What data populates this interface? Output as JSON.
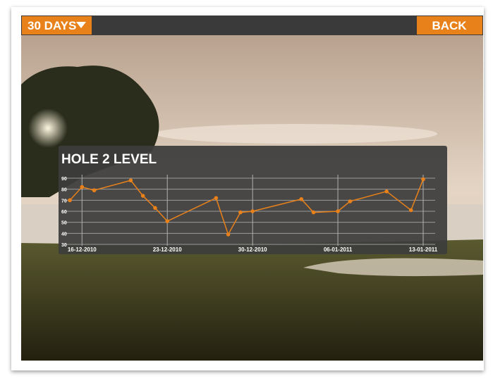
{
  "ui": {
    "menu_button": "30 DAYS",
    "back_button": "BACK"
  },
  "chart_data": {
    "type": "line",
    "title": "HOLE 2 LEVEL",
    "x": [
      "2010-12-15",
      "2010-12-16",
      "2010-12-17",
      "2010-12-20",
      "2010-12-21",
      "2010-12-22",
      "2010-12-23",
      "2010-12-27",
      "2010-12-28",
      "2010-12-29",
      "2010-12-30",
      "2011-01-03",
      "2011-01-04",
      "2011-01-06",
      "2011-01-07",
      "2011-01-10",
      "2011-01-12",
      "2011-01-13"
    ],
    "series": [
      {
        "color": "#e8811a",
        "values": [
          70,
          82,
          79,
          88,
          74,
          63,
          51,
          72,
          39,
          59,
          60,
          71,
          59,
          60,
          69,
          78,
          61,
          89
        ]
      }
    ],
    "xlim": [
      "2010-12-15",
      "2011-01-13"
    ],
    "xticks": [
      {
        "value": "2010-12-16",
        "label": "16-12-2010"
      },
      {
        "value": "2010-12-23",
        "label": "23-12-2010"
      },
      {
        "value": "2010-12-30",
        "label": "30-12-2010"
      },
      {
        "value": "2011-01-06",
        "label": "06-01-2011"
      },
      {
        "value": "2011-01-13",
        "label": "13-01-2011"
      }
    ],
    "ylim": [
      30,
      90
    ],
    "yticks": [
      30,
      40,
      50,
      60,
      70,
      80,
      90
    ],
    "grid": true
  }
}
